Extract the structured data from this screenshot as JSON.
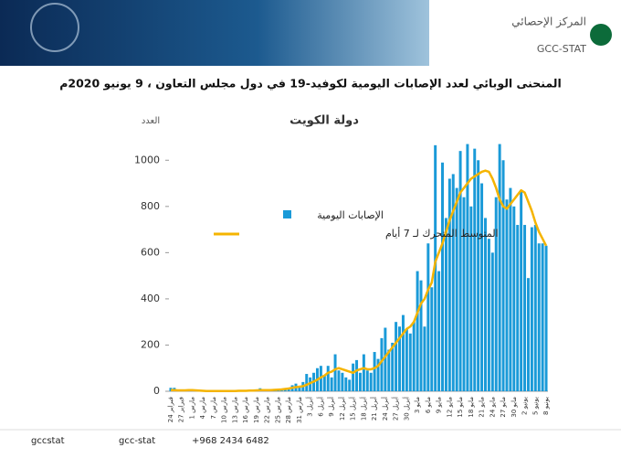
{
  "header": {
    "org_name": "المركز الإحصائي",
    "org_short": "GCC-STAT"
  },
  "heading": "المنحنى الوبائي لعدد الإصابات اليومية لكوفيد-19  في  دول مجلس التعاون ، 9 يونيو 2020م",
  "chart_data": {
    "type": "bar",
    "title": "دولة الكويت",
    "y_label": "العدد",
    "categories": [
      "24 فبراير",
      null,
      null,
      "27 فبراير",
      null,
      null,
      "1 مارس",
      null,
      null,
      "4 مارس",
      null,
      null,
      "7 مارس",
      null,
      null,
      "10 مارس",
      null,
      null,
      "13 مارس",
      null,
      null,
      "16 مارس",
      null,
      null,
      "19 مارس",
      null,
      null,
      "22 مارس",
      null,
      null,
      "25 مارس",
      null,
      null,
      "28 مارس",
      null,
      null,
      "31 مارس",
      null,
      null,
      "3 أبريل",
      null,
      null,
      "6 أبريل",
      null,
      null,
      "9 أبريل",
      null,
      null,
      "12 أبريل",
      null,
      null,
      "15 أبريل",
      null,
      null,
      "18 أبريل",
      null,
      null,
      "21 أبريل",
      null,
      null,
      "24 أبريل",
      null,
      null,
      "27 أبريل",
      null,
      null,
      "30 أبريل",
      null,
      null,
      "3 مايو",
      null,
      null,
      "6 مايو",
      null,
      null,
      "9 مايو",
      null,
      null,
      "12 مايو",
      null,
      null,
      "15 مايو",
      null,
      null,
      "18 مايو",
      null,
      null,
      "21 مايو",
      null,
      null,
      "24 مايو",
      null,
      null,
      "27 مايو",
      null,
      null,
      "30 مايو",
      null,
      null,
      "2 يونيو",
      null,
      null,
      "5 يونيو",
      null,
      null,
      "8 يونيو"
    ],
    "series": [
      {
        "name": "الإصابات اليومية",
        "color": "#1a9ad8",
        "values": [
          15,
          15,
          0,
          0,
          0,
          8,
          0,
          0,
          0,
          0,
          0,
          0,
          0,
          3,
          1,
          1,
          0,
          2,
          0,
          0,
          3,
          1,
          5,
          1,
          6,
          13,
          3,
          1,
          3,
          10,
          6,
          8,
          9,
          15,
          26,
          33,
          20,
          40,
          75,
          60,
          80,
          100,
          110,
          70,
          110,
          60,
          160,
          90,
          80,
          60,
          50,
          120,
          135,
          80,
          160,
          90,
          80,
          170,
          140,
          230,
          275,
          180,
          210,
          300,
          280,
          330,
          270,
          250,
          300,
          520,
          480,
          280,
          640,
          450,
          1065,
          520,
          990,
          750,
          920,
          940,
          880,
          1040,
          840,
          1070,
          800,
          1050,
          1000,
          900,
          750,
          660,
          600,
          840,
          1070,
          1000,
          830,
          880,
          800,
          720,
          870,
          720,
          490,
          710,
          720,
          640,
          640,
          630
        ]
      },
      {
        "name": "المتوسط المتحرك لـ  7 أيام",
        "color": "#f5b400",
        "type": "line",
        "values": [
          5,
          5,
          4,
          4,
          4,
          5,
          5,
          4,
          3,
          2,
          1,
          1,
          1,
          1,
          1,
          1,
          1,
          1,
          1,
          2,
          2,
          2,
          3,
          3,
          4,
          5,
          5,
          5,
          5,
          6,
          7,
          8,
          10,
          12,
          15,
          18,
          20,
          22,
          28,
          35,
          42,
          50,
          60,
          68,
          80,
          85,
          95,
          100,
          95,
          90,
          85,
          80,
          90,
          95,
          100,
          95,
          95,
          100,
          110,
          130,
          150,
          170,
          190,
          210,
          230,
          250,
          270,
          280,
          300,
          340,
          380,
          400,
          440,
          470,
          560,
          600,
          640,
          690,
          740,
          780,
          820,
          860,
          880,
          900,
          920,
          930,
          940,
          950,
          955,
          950,
          920,
          880,
          830,
          800,
          790,
          810,
          830,
          850,
          870,
          860,
          820,
          780,
          730,
          690,
          660,
          630
        ]
      }
    ],
    "ylim": [
      0,
      1100
    ],
    "yticks": [
      0,
      200,
      400,
      600,
      800,
      1000
    ]
  },
  "footer": {
    "twitter": "gccstat",
    "snap": "gcc-stat",
    "phone": "+968 2434 6482"
  }
}
